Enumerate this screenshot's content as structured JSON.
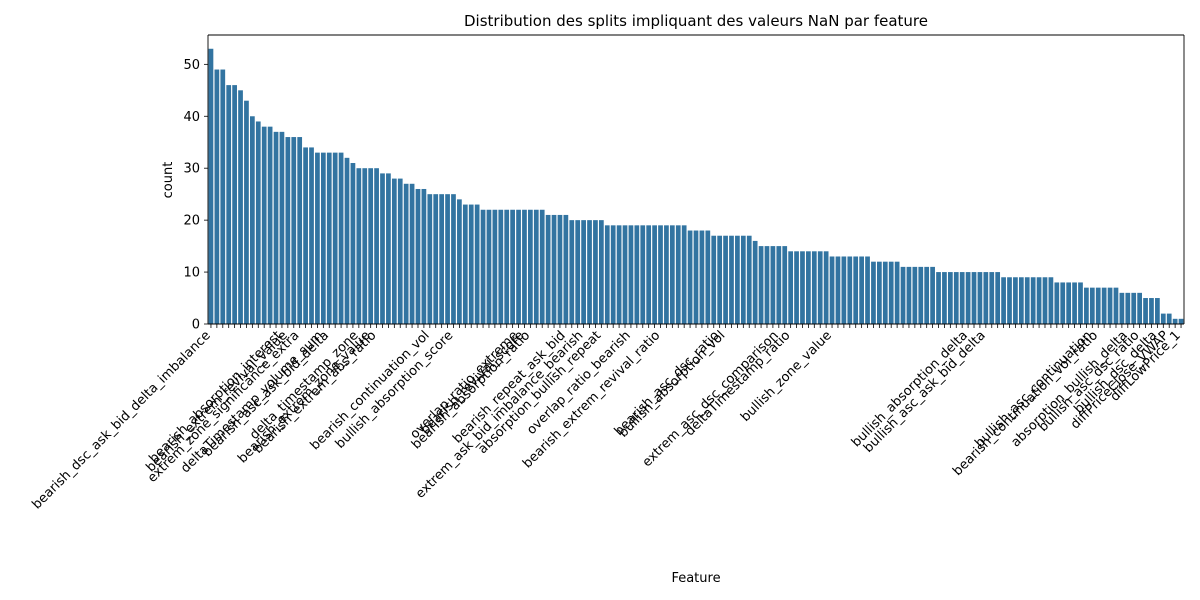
{
  "chart_data": {
    "type": "bar",
    "title": "Distribution des splits impliquant des valeurs NaN par feature",
    "xlabel": "Feature",
    "ylabel": "count",
    "ylim": [
      0,
      55.65
    ],
    "yticks": [
      0,
      10,
      20,
      30,
      40,
      50
    ],
    "bar_color": "#3274a1",
    "grid": false,
    "values": [
      53,
      49,
      49,
      46,
      46,
      45,
      43,
      40,
      39,
      38,
      38,
      37,
      37,
      36,
      36,
      36,
      34,
      34,
      33,
      33,
      33,
      33,
      33,
      32,
      31,
      30,
      30,
      30,
      30,
      29,
      29,
      28,
      28,
      27,
      27,
      26,
      26,
      25,
      25,
      25,
      25,
      25,
      24,
      23,
      23,
      23,
      22,
      22,
      22,
      22,
      22,
      22,
      22,
      22,
      22,
      22,
      22,
      21,
      21,
      21,
      21,
      20,
      20,
      20,
      20,
      20,
      20,
      19,
      19,
      19,
      19,
      19,
      19,
      19,
      19,
      19,
      19,
      19,
      19,
      19,
      19,
      18,
      18,
      18,
      18,
      17,
      17,
      17,
      17,
      17,
      17,
      17,
      16,
      15,
      15,
      15,
      15,
      15,
      14,
      14,
      14,
      14,
      14,
      14,
      14,
      13,
      13,
      13,
      13,
      13,
      13,
      13,
      12,
      12,
      12,
      12,
      12,
      11,
      11,
      11,
      11,
      11,
      11,
      10,
      10,
      10,
      10,
      10,
      10,
      10,
      10,
      10,
      10,
      10,
      9,
      9,
      9,
      9,
      9,
      9,
      9,
      9,
      9,
      8,
      8,
      8,
      8,
      8,
      7,
      7,
      7,
      7,
      7,
      7,
      6,
      6,
      6,
      6,
      5,
      5,
      5,
      2,
      2,
      1,
      1
    ],
    "visible_tick_labels": [
      {
        "index": 0,
        "label": "bearish_dsc_ask_bid_delta_imbalance"
      },
      {
        "index": 12,
        "label": "bearish_absorption_interest"
      },
      {
        "index": 13,
        "label": "bearish_extrem_revival_value"
      },
      {
        "index": 15,
        "label": "extrem_zone_significance_extra"
      },
      {
        "index": 19,
        "label": "deltaTimestamp_volume_sum"
      },
      {
        "index": 20,
        "label": "bearish_asc_ask_bid_delta"
      },
      {
        "index": 25,
        "label": "delta_timestamp_zone"
      },
      {
        "index": 27,
        "label": "bearish_extrem_zone_value"
      },
      {
        "index": 28,
        "label": "bearish_extrem_abs_ratio"
      },
      {
        "index": 37,
        "label": "bearish_continuation_vol"
      },
      {
        "index": 41,
        "label": "bullish_absorption_score"
      },
      {
        "index": 52,
        "label": "overlap_ratio_extreme"
      },
      {
        "index": 53,
        "label": "bearish_revival_score"
      },
      {
        "index": 54,
        "label": "bearish_absorption_ratio"
      },
      {
        "index": 60,
        "label": "bearish_repeat_ask_bid"
      },
      {
        "index": 63,
        "label": "extrem_ask_bid_imbalance_bearish"
      },
      {
        "index": 66,
        "label": "absorption_bullish_repeat"
      },
      {
        "index": 71,
        "label": "overlap_ratio_bearish"
      },
      {
        "index": 76,
        "label": "bearish_extrem_revival_ratio"
      },
      {
        "index": 86,
        "label": "bearish_asc_dsc_ratio"
      },
      {
        "index": 87,
        "label": "bullish_absorption_vol"
      },
      {
        "index": 96,
        "label": "extrem_asc_dsc_comparison"
      },
      {
        "index": 98,
        "label": "deltaTimestamp_ratio"
      },
      {
        "index": 105,
        "label": "bullish_zone_value"
      },
      {
        "index": 128,
        "label": "bullish_absorption_delta"
      },
      {
        "index": 131,
        "label": "bullish_asc_ask_bid_delta"
      },
      {
        "index": 149,
        "label": "bullish_asc_continuation"
      },
      {
        "index": 150,
        "label": "bearish_continuation_vol_ratio"
      },
      {
        "index": 155,
        "label": "absorption_bullish_delta"
      },
      {
        "index": 157,
        "label": "bullish_asc_dsc_ratio"
      },
      {
        "index": 160,
        "label": "bullish_dsc_delta"
      },
      {
        "index": 162,
        "label": "diffPriceClose_VWAP"
      },
      {
        "index": 164,
        "label": "diffLowPrice_1"
      }
    ]
  }
}
